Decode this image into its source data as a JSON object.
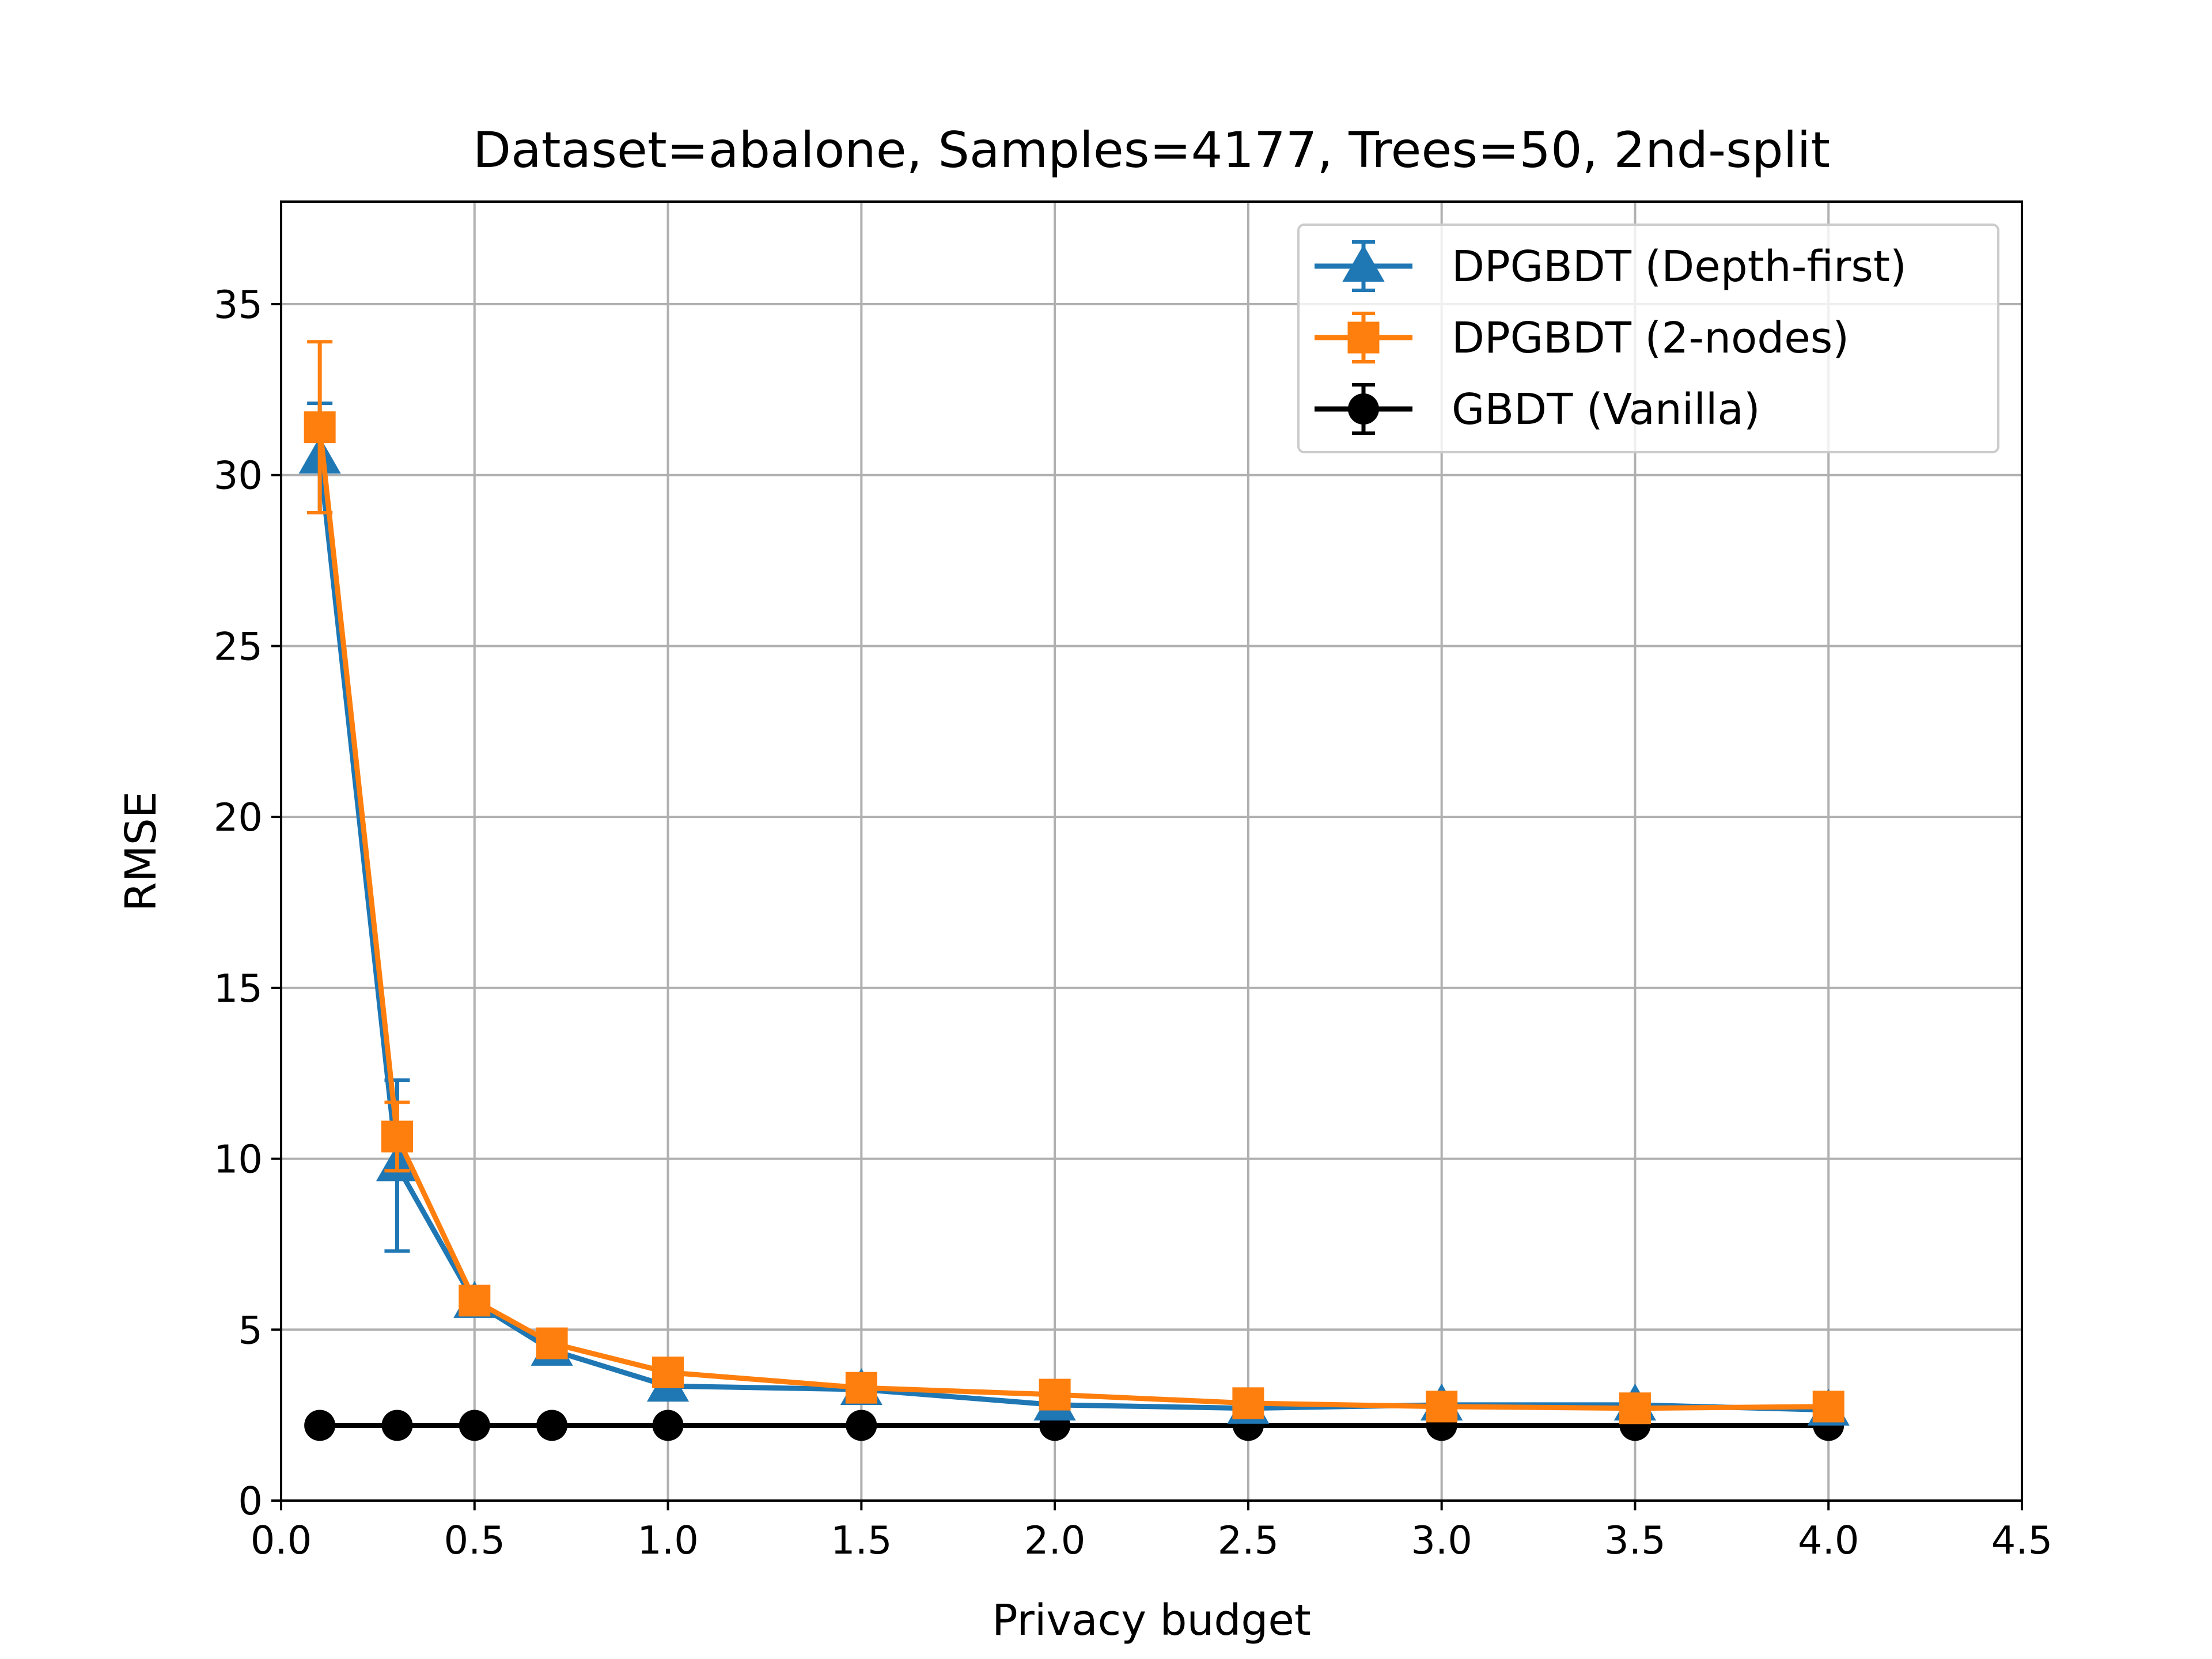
{
  "chart_data": {
    "type": "line",
    "title": "Dataset=abalone, Samples=4177, Trees=50, 2nd-split",
    "xlabel": "Privacy budget",
    "ylabel": "RMSE",
    "xlim": [
      0.0,
      4.5
    ],
    "ylim": [
      0,
      38
    ],
    "xticks": [
      0.0,
      0.5,
      1.0,
      1.5,
      2.0,
      2.5,
      3.0,
      3.5,
      4.0,
      4.5
    ],
    "xtick_labels": [
      "0.0",
      "0.5",
      "1.0",
      "1.5",
      "2.0",
      "2.5",
      "3.0",
      "3.5",
      "4.0",
      "4.5"
    ],
    "yticks": [
      0,
      5,
      10,
      15,
      20,
      25,
      30,
      35
    ],
    "ytick_labels": [
      "0",
      "5",
      "10",
      "15",
      "20",
      "25",
      "30",
      "35"
    ],
    "grid": true,
    "legend_position": "top-right",
    "x": [
      0.1,
      0.3,
      0.5,
      0.7,
      1.0,
      1.5,
      2.0,
      2.5,
      3.0,
      3.5,
      4.0
    ],
    "series": [
      {
        "name": "DPGBDT (Depth-first)",
        "color": "#1f77b4",
        "marker": "triangle",
        "values": [
          30.5,
          9.8,
          5.8,
          4.4,
          3.35,
          3.25,
          2.8,
          2.7,
          2.8,
          2.8,
          2.65
        ],
        "errors": [
          1.6,
          2.5,
          0.3,
          0.2,
          0.1,
          0.1,
          0.1,
          0.1,
          0.1,
          0.1,
          0.1
        ]
      },
      {
        "name": "DPGBDT (2-nodes)",
        "color": "#ff7f0e",
        "marker": "square",
        "values": [
          31.4,
          10.65,
          5.85,
          4.6,
          3.75,
          3.3,
          3.1,
          2.85,
          2.75,
          2.7,
          2.75
        ],
        "errors": [
          2.5,
          1.0,
          0.35,
          0.2,
          0.15,
          0.1,
          0.1,
          0.1,
          0.1,
          0.1,
          0.1
        ]
      },
      {
        "name": "GBDT (Vanilla)",
        "color": "#000000",
        "marker": "circle",
        "values": [
          2.2,
          2.2,
          2.2,
          2.2,
          2.2,
          2.2,
          2.2,
          2.2,
          2.2,
          2.2,
          2.2
        ],
        "errors": [
          0.05,
          0.05,
          0.05,
          0.05,
          0.05,
          0.05,
          0.05,
          0.05,
          0.05,
          0.05,
          0.05
        ]
      }
    ]
  }
}
